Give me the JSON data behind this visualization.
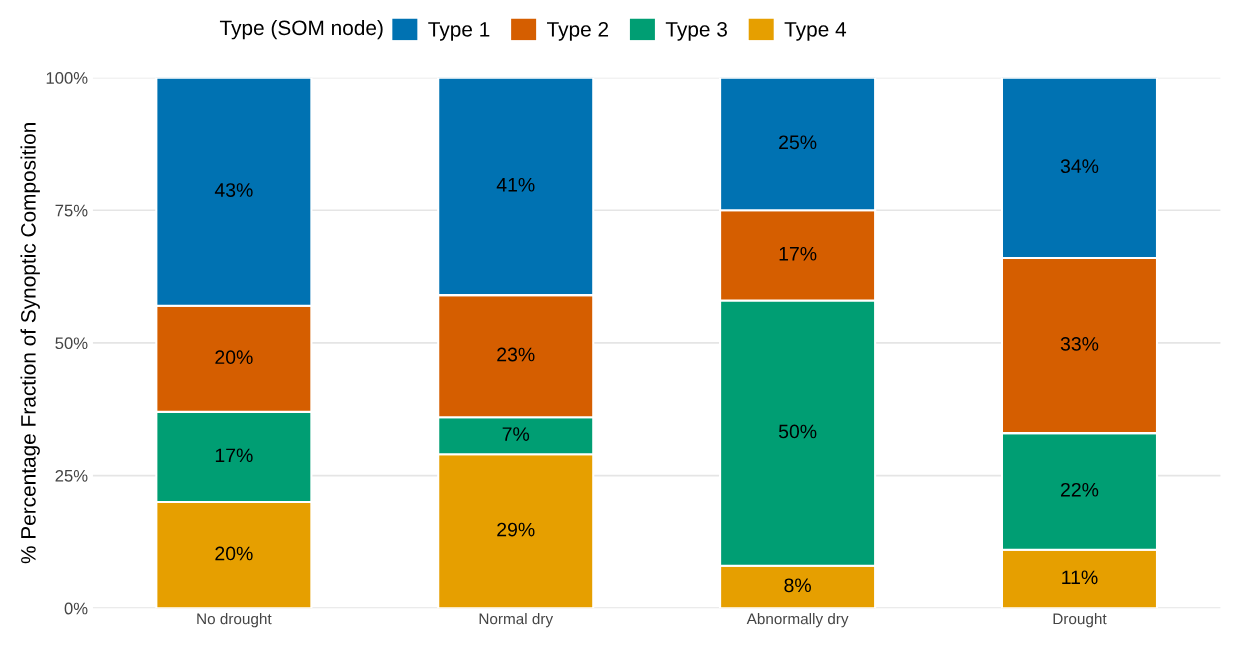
{
  "chart_data": {
    "type": "bar",
    "stacked": true,
    "categories": [
      "No drought",
      "Normal dry",
      "Abnormally dry",
      "Drought"
    ],
    "ylabel": "% Percentage Fraction of Synoptic Composition",
    "legend_title": "Type (SOM node)",
    "legend": "top",
    "ylim": [
      0,
      100
    ],
    "yticks": [
      {
        "value": 0,
        "label": "0%"
      },
      {
        "value": 25,
        "label": "25%"
      },
      {
        "value": 50,
        "label": "50%"
      },
      {
        "value": 75,
        "label": "75%"
      },
      {
        "value": 100,
        "label": "100%"
      }
    ],
    "grid": "y",
    "series": [
      {
        "name": "Type 4",
        "color": "#e69f00",
        "values": [
          20,
          29,
          8,
          11
        ],
        "value_labels": [
          "20%",
          "29%",
          "8%",
          "11%"
        ]
      },
      {
        "name": "Type 3",
        "color": "#009e73",
        "values": [
          17,
          7,
          50,
          22
        ],
        "value_labels": [
          "17%",
          "7%",
          "50%",
          "22%"
        ]
      },
      {
        "name": "Type 2",
        "color": "#d55e00",
        "values": [
          20,
          23,
          17,
          33
        ],
        "value_labels": [
          "20%",
          "23%",
          "17%",
          "33%"
        ]
      },
      {
        "name": "Type 1",
        "color": "#0072b2",
        "values": [
          43,
          41,
          25,
          34
        ],
        "value_labels": [
          "43%",
          "41%",
          "25%",
          "34%"
        ]
      }
    ]
  }
}
